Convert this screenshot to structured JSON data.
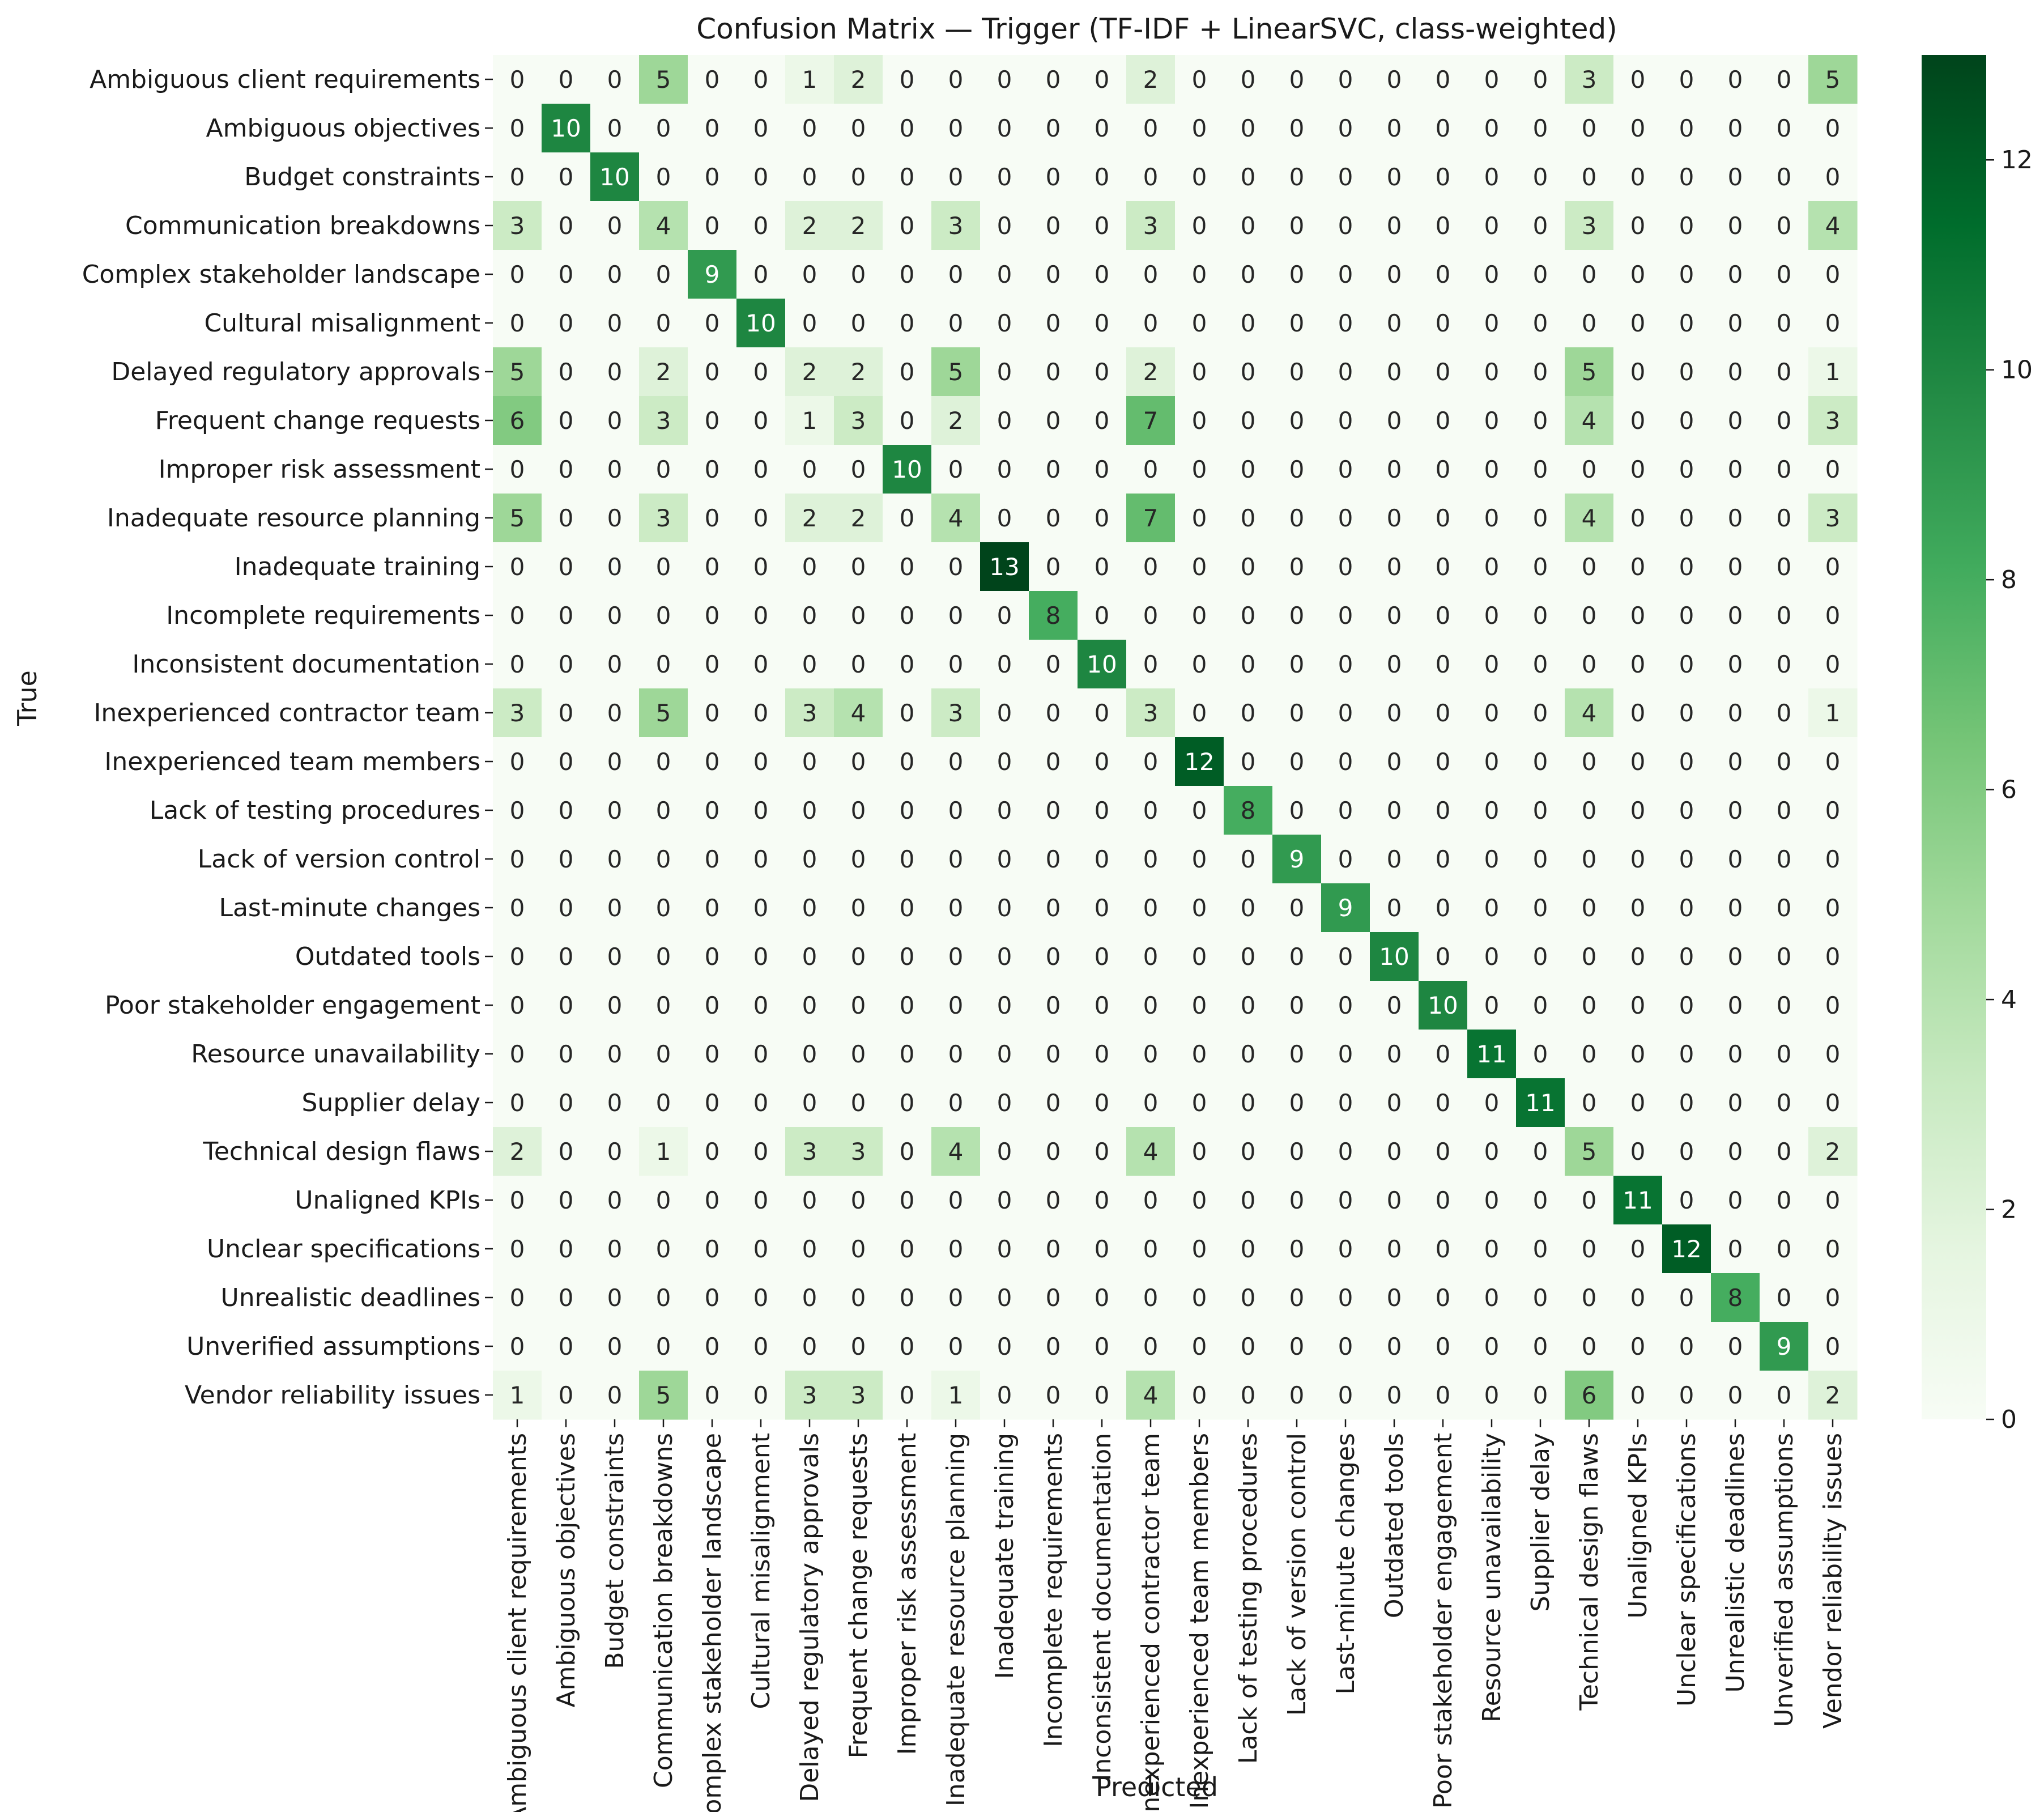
{
  "chart_data": {
    "type": "heatmap",
    "title": "Confusion Matrix — Trigger (TF-IDF + LinearSVC, class-weighted)",
    "xlabel": "Predicted",
    "ylabel": "True",
    "labels": [
      "Ambiguous client requirements",
      "Ambiguous objectives",
      "Budget constraints",
      "Communication breakdowns",
      "Complex stakeholder landscape",
      "Cultural misalignment",
      "Delayed regulatory approvals",
      "Frequent change requests",
      "Improper risk assessment",
      "Inadequate resource planning",
      "Inadequate training",
      "Incomplete requirements",
      "Inconsistent documentation",
      "Inexperienced contractor team",
      "Inexperienced team members",
      "Lack of testing procedures",
      "Lack of version control",
      "Last-minute changes",
      "Outdated tools",
      "Poor stakeholder engagement",
      "Resource unavailability",
      "Supplier delay",
      "Technical design flaws",
      "Unaligned KPIs",
      "Unclear specifications",
      "Unrealistic deadlines",
      "Unverified assumptions",
      "Vendor reliability issues"
    ],
    "matrix": [
      [
        0,
        0,
        0,
        5,
        0,
        0,
        1,
        2,
        0,
        0,
        0,
        0,
        0,
        2,
        0,
        0,
        0,
        0,
        0,
        0,
        0,
        0,
        3,
        0,
        0,
        0,
        0,
        5
      ],
      [
        0,
        10,
        0,
        0,
        0,
        0,
        0,
        0,
        0,
        0,
        0,
        0,
        0,
        0,
        0,
        0,
        0,
        0,
        0,
        0,
        0,
        0,
        0,
        0,
        0,
        0,
        0,
        0
      ],
      [
        0,
        0,
        10,
        0,
        0,
        0,
        0,
        0,
        0,
        0,
        0,
        0,
        0,
        0,
        0,
        0,
        0,
        0,
        0,
        0,
        0,
        0,
        0,
        0,
        0,
        0,
        0,
        0
      ],
      [
        3,
        0,
        0,
        4,
        0,
        0,
        2,
        2,
        0,
        3,
        0,
        0,
        0,
        3,
        0,
        0,
        0,
        0,
        0,
        0,
        0,
        0,
        3,
        0,
        0,
        0,
        0,
        4
      ],
      [
        0,
        0,
        0,
        0,
        9,
        0,
        0,
        0,
        0,
        0,
        0,
        0,
        0,
        0,
        0,
        0,
        0,
        0,
        0,
        0,
        0,
        0,
        0,
        0,
        0,
        0,
        0,
        0
      ],
      [
        0,
        0,
        0,
        0,
        0,
        10,
        0,
        0,
        0,
        0,
        0,
        0,
        0,
        0,
        0,
        0,
        0,
        0,
        0,
        0,
        0,
        0,
        0,
        0,
        0,
        0,
        0,
        0
      ],
      [
        5,
        0,
        0,
        2,
        0,
        0,
        2,
        2,
        0,
        5,
        0,
        0,
        0,
        2,
        0,
        0,
        0,
        0,
        0,
        0,
        0,
        0,
        5,
        0,
        0,
        0,
        0,
        1
      ],
      [
        6,
        0,
        0,
        3,
        0,
        0,
        1,
        3,
        0,
        2,
        0,
        0,
        0,
        7,
        0,
        0,
        0,
        0,
        0,
        0,
        0,
        0,
        4,
        0,
        0,
        0,
        0,
        3
      ],
      [
        0,
        0,
        0,
        0,
        0,
        0,
        0,
        0,
        10,
        0,
        0,
        0,
        0,
        0,
        0,
        0,
        0,
        0,
        0,
        0,
        0,
        0,
        0,
        0,
        0,
        0,
        0,
        0
      ],
      [
        5,
        0,
        0,
        3,
        0,
        0,
        2,
        2,
        0,
        4,
        0,
        0,
        0,
        7,
        0,
        0,
        0,
        0,
        0,
        0,
        0,
        0,
        4,
        0,
        0,
        0,
        0,
        3
      ],
      [
        0,
        0,
        0,
        0,
        0,
        0,
        0,
        0,
        0,
        0,
        13,
        0,
        0,
        0,
        0,
        0,
        0,
        0,
        0,
        0,
        0,
        0,
        0,
        0,
        0,
        0,
        0,
        0
      ],
      [
        0,
        0,
        0,
        0,
        0,
        0,
        0,
        0,
        0,
        0,
        0,
        8,
        0,
        0,
        0,
        0,
        0,
        0,
        0,
        0,
        0,
        0,
        0,
        0,
        0,
        0,
        0,
        0
      ],
      [
        0,
        0,
        0,
        0,
        0,
        0,
        0,
        0,
        0,
        0,
        0,
        0,
        10,
        0,
        0,
        0,
        0,
        0,
        0,
        0,
        0,
        0,
        0,
        0,
        0,
        0,
        0,
        0
      ],
      [
        3,
        0,
        0,
        5,
        0,
        0,
        3,
        4,
        0,
        3,
        0,
        0,
        0,
        3,
        0,
        0,
        0,
        0,
        0,
        0,
        0,
        0,
        4,
        0,
        0,
        0,
        0,
        1
      ],
      [
        0,
        0,
        0,
        0,
        0,
        0,
        0,
        0,
        0,
        0,
        0,
        0,
        0,
        0,
        12,
        0,
        0,
        0,
        0,
        0,
        0,
        0,
        0,
        0,
        0,
        0,
        0,
        0
      ],
      [
        0,
        0,
        0,
        0,
        0,
        0,
        0,
        0,
        0,
        0,
        0,
        0,
        0,
        0,
        0,
        8,
        0,
        0,
        0,
        0,
        0,
        0,
        0,
        0,
        0,
        0,
        0,
        0
      ],
      [
        0,
        0,
        0,
        0,
        0,
        0,
        0,
        0,
        0,
        0,
        0,
        0,
        0,
        0,
        0,
        0,
        9,
        0,
        0,
        0,
        0,
        0,
        0,
        0,
        0,
        0,
        0,
        0
      ],
      [
        0,
        0,
        0,
        0,
        0,
        0,
        0,
        0,
        0,
        0,
        0,
        0,
        0,
        0,
        0,
        0,
        0,
        9,
        0,
        0,
        0,
        0,
        0,
        0,
        0,
        0,
        0,
        0
      ],
      [
        0,
        0,
        0,
        0,
        0,
        0,
        0,
        0,
        0,
        0,
        0,
        0,
        0,
        0,
        0,
        0,
        0,
        0,
        10,
        0,
        0,
        0,
        0,
        0,
        0,
        0,
        0,
        0
      ],
      [
        0,
        0,
        0,
        0,
        0,
        0,
        0,
        0,
        0,
        0,
        0,
        0,
        0,
        0,
        0,
        0,
        0,
        0,
        0,
        10,
        0,
        0,
        0,
        0,
        0,
        0,
        0,
        0
      ],
      [
        0,
        0,
        0,
        0,
        0,
        0,
        0,
        0,
        0,
        0,
        0,
        0,
        0,
        0,
        0,
        0,
        0,
        0,
        0,
        0,
        11,
        0,
        0,
        0,
        0,
        0,
        0,
        0
      ],
      [
        0,
        0,
        0,
        0,
        0,
        0,
        0,
        0,
        0,
        0,
        0,
        0,
        0,
        0,
        0,
        0,
        0,
        0,
        0,
        0,
        0,
        11,
        0,
        0,
        0,
        0,
        0,
        0
      ],
      [
        2,
        0,
        0,
        1,
        0,
        0,
        3,
        3,
        0,
        4,
        0,
        0,
        0,
        4,
        0,
        0,
        0,
        0,
        0,
        0,
        0,
        0,
        5,
        0,
        0,
        0,
        0,
        2
      ],
      [
        0,
        0,
        0,
        0,
        0,
        0,
        0,
        0,
        0,
        0,
        0,
        0,
        0,
        0,
        0,
        0,
        0,
        0,
        0,
        0,
        0,
        0,
        0,
        11,
        0,
        0,
        0,
        0
      ],
      [
        0,
        0,
        0,
        0,
        0,
        0,
        0,
        0,
        0,
        0,
        0,
        0,
        0,
        0,
        0,
        0,
        0,
        0,
        0,
        0,
        0,
        0,
        0,
        0,
        12,
        0,
        0,
        0
      ],
      [
        0,
        0,
        0,
        0,
        0,
        0,
        0,
        0,
        0,
        0,
        0,
        0,
        0,
        0,
        0,
        0,
        0,
        0,
        0,
        0,
        0,
        0,
        0,
        0,
        0,
        8,
        0,
        0
      ],
      [
        0,
        0,
        0,
        0,
        0,
        0,
        0,
        0,
        0,
        0,
        0,
        0,
        0,
        0,
        0,
        0,
        0,
        0,
        0,
        0,
        0,
        0,
        0,
        0,
        0,
        0,
        9,
        0
      ],
      [
        1,
        0,
        0,
        5,
        0,
        0,
        3,
        3,
        0,
        1,
        0,
        0,
        0,
        4,
        0,
        0,
        0,
        0,
        0,
        0,
        0,
        0,
        6,
        0,
        0,
        0,
        0,
        2
      ]
    ],
    "colorbar": {
      "ticks": [
        0,
        2,
        4,
        6,
        8,
        10,
        12
      ],
      "range": [
        0,
        13
      ],
      "colormap": "Greens",
      "colors": [
        "#f7fcf5",
        "#e5f5e0",
        "#c7e9c0",
        "#a1d99b",
        "#74c476",
        "#41ab5d",
        "#238b45",
        "#006d2c",
        "#00441b"
      ]
    }
  }
}
